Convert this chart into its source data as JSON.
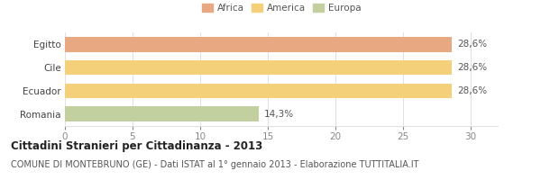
{
  "categories": [
    "Egitto",
    "Cile",
    "Ecuador",
    "Romania"
  ],
  "values": [
    28.6,
    28.6,
    28.6,
    14.3
  ],
  "bar_colors": [
    "#e8a882",
    "#f5d07a",
    "#f5d07a",
    "#c2cf9e"
  ],
  "value_labels": [
    "28,6%",
    "28,6%",
    "28,6%",
    "14,3%"
  ],
  "legend": [
    {
      "label": "Africa",
      "color": "#e8a882"
    },
    {
      "label": "America",
      "color": "#f5d07a"
    },
    {
      "label": "Europa",
      "color": "#c2cf9e"
    }
  ],
  "xlim": [
    0,
    32
  ],
  "xticks": [
    0,
    5,
    10,
    15,
    20,
    25,
    30
  ],
  "title": "Cittadini Stranieri per Cittadinanza - 2013",
  "subtitle": "COMUNE DI MONTEBRUNO (GE) - Dati ISTAT al 1° gennaio 2013 - Elaborazione TUTTITALIA.IT",
  "title_fontsize": 8.5,
  "subtitle_fontsize": 7,
  "label_fontsize": 7.5,
  "tick_fontsize": 7.5,
  "value_fontsize": 7.5,
  "background_color": "#ffffff",
  "grid_color": "#e0e0e0"
}
